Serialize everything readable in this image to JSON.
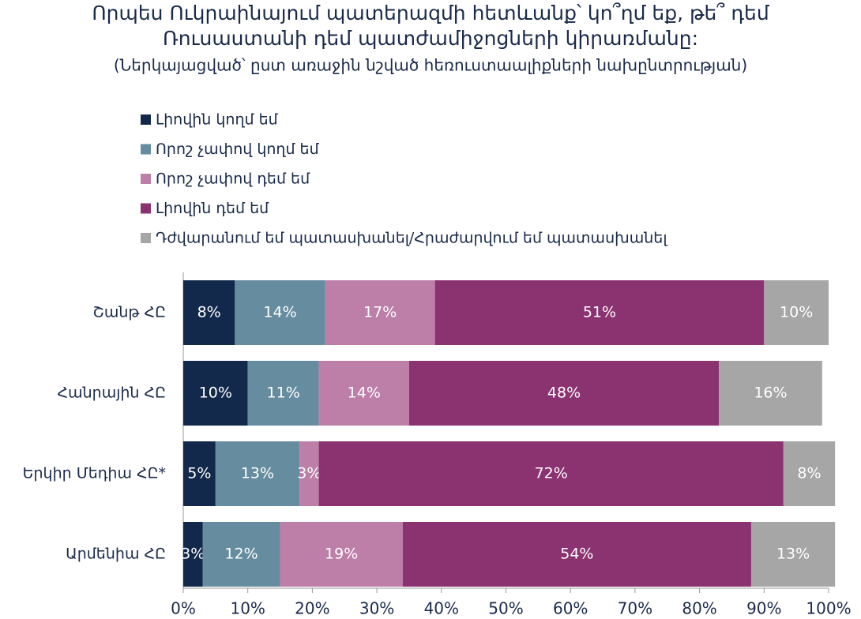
{
  "chart_data": {
    "type": "stacked-bar-horizontal",
    "title": [
      "Որպես Ուկրաինայում պատերազմի հետևանք՝ կո՞ղմ եք, թե՞ դեմ",
      "Ռուսաստանի դեմ պատժամիջոցների կիրառմանը:"
    ],
    "subtitle": "(Ներկայացված՝ ըստ առաջին նշված հեռուստաալիքների նախընտրության)",
    "categories": [
      "Շանթ ՀԸ",
      "Հանրային ՀԸ",
      "Երկիր Մեդիա ՀԸ*",
      "Արմենիա ՀԸ"
    ],
    "series": [
      {
        "name": "Լիովին կողմ եմ",
        "color": "#13294b",
        "values": [
          8,
          10,
          5,
          3
        ],
        "value_labels": [
          "8%",
          "10%",
          "5%",
          "3%"
        ]
      },
      {
        "name": "Որոշ չափով կողմ եմ",
        "color": "#668ca0",
        "values": [
          14,
          11,
          13,
          12
        ],
        "value_labels": [
          "14%",
          "11%",
          "13%",
          "12%"
        ]
      },
      {
        "name": "Որոշ չափով դեմ եմ",
        "color": "#bd7fa8",
        "values": [
          17,
          14,
          3,
          19
        ],
        "value_labels": [
          "17%",
          "14%",
          "3%",
          "19%"
        ]
      },
      {
        "name": "Լիովին դեմ եմ",
        "color": "#8b3270",
        "values": [
          51,
          48,
          72,
          54
        ],
        "value_labels": [
          "51%",
          "48%",
          "72%",
          "54%"
        ]
      },
      {
        "name": "Դժվարանում եմ պատասխանել/Հրաժարվում եմ պատասխանել",
        "color": "#a6a6a6",
        "values": [
          10,
          16,
          8,
          13
        ],
        "value_labels": [
          "10%",
          "16%",
          "8%",
          "13%"
        ]
      }
    ],
    "xlim": [
      0,
      100
    ],
    "xticks": [
      {
        "value": 0,
        "label": "0%"
      },
      {
        "value": 10,
        "label": "10%"
      },
      {
        "value": 20,
        "label": "20%"
      },
      {
        "value": 30,
        "label": "30%"
      },
      {
        "value": 40,
        "label": "40%"
      },
      {
        "value": 50,
        "label": "50%"
      },
      {
        "value": 60,
        "label": "60%"
      },
      {
        "value": 70,
        "label": "70%"
      },
      {
        "value": 80,
        "label": "80%"
      },
      {
        "value": 90,
        "label": "90%"
      },
      {
        "value": 100,
        "label": "100%"
      }
    ],
    "legend": "top-left"
  }
}
